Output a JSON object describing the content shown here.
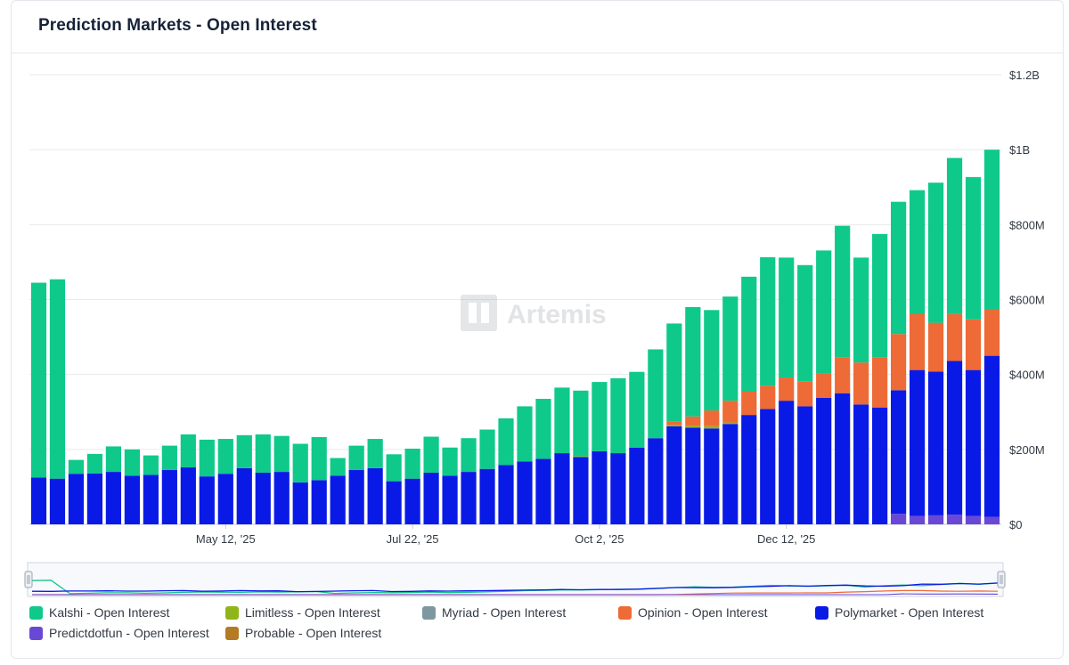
{
  "header": {
    "title": "Prediction Markets - Open Interest"
  },
  "watermark": {
    "text": "Artemis"
  },
  "colors": {
    "kalshi": "#0fc98a",
    "limitless": "#8fb51a",
    "myriad": "#7f979f",
    "opinion": "#ee6a36",
    "polymarket": "#0a1ae6",
    "predictdotfun": "#6a48d6",
    "probable": "#b57a24"
  },
  "legend": [
    {
      "label": "Kalshi - Open Interest",
      "color": "#0fc98a"
    },
    {
      "label": "Limitless - Open Interest",
      "color": "#8fb51a"
    },
    {
      "label": "Myriad - Open Interest",
      "color": "#7f979f"
    },
    {
      "label": "Opinion - Open Interest",
      "color": "#ee6a36"
    },
    {
      "label": "Polymarket - Open Interest",
      "color": "#0a1ae6"
    },
    {
      "label": "Predictdotfun - Open Interest",
      "color": "#6a48d6"
    },
    {
      "label": "Probable - Open Interest",
      "color": "#b57a24"
    }
  ],
  "chart_data": {
    "type": "bar",
    "stacked": true,
    "title": "Prediction Markets - Open Interest",
    "ylim": [
      0,
      1200
    ],
    "y_unit": "M USD",
    "y_ticks": [
      {
        "value": 0,
        "label": "$0"
      },
      {
        "value": 200,
        "label": "$200M"
      },
      {
        "value": 400,
        "label": "$400M"
      },
      {
        "value": 600,
        "label": "$600M"
      },
      {
        "value": 800,
        "label": "$800M"
      },
      {
        "value": 1000,
        "label": "$1B"
      },
      {
        "value": 1200,
        "label": "$1.2B"
      }
    ],
    "x_ticks": [
      {
        "index": 10,
        "label": "May 12, '25"
      },
      {
        "index": 20,
        "label": "Jul 22, '25"
      },
      {
        "index": 30,
        "label": "Oct 2, '25"
      },
      {
        "index": 40,
        "label": "Dec 12, '25"
      }
    ],
    "grid": true,
    "legend_position": "bottom",
    "n_bars": 52,
    "series": [
      {
        "name": "Predictdotfun - Open Interest",
        "key": "predictdotfun",
        "color": "#6a48d6",
        "values": [
          0,
          0,
          0,
          0,
          0,
          0,
          0,
          0,
          0,
          0,
          0,
          0,
          0,
          0,
          0,
          0,
          0,
          0,
          0,
          0,
          0,
          0,
          0,
          0,
          0,
          0,
          0,
          0,
          0,
          0,
          0,
          0,
          0,
          0,
          0,
          0,
          0,
          0,
          0,
          0,
          0,
          0,
          0,
          0,
          0,
          0,
          28,
          22,
          24,
          26,
          22,
          20
        ]
      },
      {
        "name": "Probable - Open Interest",
        "key": "probable",
        "color": "#b57a24",
        "values": [
          0,
          0,
          0,
          0,
          0,
          0,
          0,
          0,
          0,
          0,
          0,
          0,
          0,
          0,
          0,
          0,
          0,
          0,
          0,
          0,
          0,
          0,
          0,
          0,
          0,
          0,
          0,
          0,
          0,
          0,
          0,
          0,
          0,
          0,
          0,
          0,
          0,
          0,
          0,
          0,
          0,
          0,
          0,
          0,
          0,
          0,
          0,
          0,
          0,
          0,
          0,
          0
        ]
      },
      {
        "name": "Polymarket - Open Interest",
        "key": "polymarket",
        "color": "#0a1ae6",
        "values": [
          125,
          122,
          135,
          136,
          140,
          130,
          132,
          145,
          152,
          128,
          135,
          150,
          138,
          140,
          112,
          118,
          130,
          145,
          150,
          115,
          122,
          138,
          130,
          140,
          148,
          158,
          168,
          175,
          190,
          180,
          195,
          190,
          205,
          230,
          262,
          258,
          256,
          268,
          292,
          308,
          330,
          315,
          338,
          350,
          320,
          312,
          330,
          390,
          384,
          410,
          390,
          430
        ]
      },
      {
        "name": "Myriad - Open Interest",
        "key": "myriad",
        "color": "#7f979f",
        "values": [
          0,
          0,
          0,
          0,
          0,
          0,
          0,
          0,
          0,
          0,
          0,
          0,
          0,
          0,
          0,
          0,
          0,
          0,
          0,
          0,
          0,
          0,
          0,
          0,
          0,
          0,
          0,
          0,
          0,
          0,
          0,
          0,
          0,
          0,
          0,
          0,
          0,
          0,
          0,
          0,
          0,
          0,
          0,
          0,
          0,
          0,
          0,
          0,
          0,
          0,
          0,
          0
        ]
      },
      {
        "name": "Limitless - Open Interest",
        "key": "limitless",
        "color": "#8fb51a",
        "values": [
          0,
          0,
          0,
          0,
          0,
          0,
          0,
          0,
          0,
          0,
          0,
          0,
          0,
          0,
          0,
          0,
          0,
          0,
          0,
          0,
          0,
          0,
          0,
          0,
          0,
          0,
          0,
          0,
          0,
          2,
          0,
          0,
          0,
          0,
          4,
          5,
          6,
          4,
          0,
          0,
          0,
          0,
          0,
          0,
          0,
          0,
          0,
          0,
          0,
          0,
          0,
          0
        ]
      },
      {
        "name": "Opinion - Open Interest",
        "key": "opinion",
        "color": "#ee6a36",
        "values": [
          0,
          0,
          0,
          0,
          0,
          0,
          0,
          0,
          0,
          0,
          0,
          0,
          0,
          0,
          0,
          0,
          0,
          0,
          0,
          0,
          0,
          0,
          0,
          0,
          0,
          0,
          0,
          0,
          0,
          0,
          0,
          0,
          0,
          0,
          8,
          25,
          42,
          58,
          62,
          62,
          62,
          67,
          65,
          95,
          112,
          133,
          150,
          150,
          130,
          125,
          135,
          125
        ]
      },
      {
        "name": "Kalshi - Open Interest",
        "key": "kalshi",
        "color": "#0fc98a",
        "values": [
          520,
          532,
          37,
          52,
          68,
          70,
          52,
          65,
          88,
          98,
          93,
          88,
          102,
          96,
          103,
          115,
          47,
          65,
          78,
          72,
          80,
          96,
          75,
          90,
          105,
          125,
          147,
          160,
          175,
          175,
          185,
          200,
          202,
          237,
          262,
          292,
          268,
          278,
          307,
          343,
          320,
          310,
          328,
          352,
          280,
          330,
          353,
          330,
          374,
          417,
          380,
          425
        ]
      }
    ]
  },
  "navigator": {
    "visible": true
  }
}
